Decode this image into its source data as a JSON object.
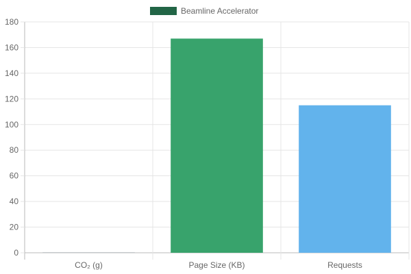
{
  "chart_data": {
    "type": "bar",
    "legend": {
      "label": "Beamline Accelerator",
      "color": "#226546",
      "position": "top"
    },
    "categories": [
      "CO₂ (g)",
      "Page Size (KB)",
      "Requests"
    ],
    "series": [
      {
        "name": "Beamline Accelerator",
        "values": [
          0.3,
          167,
          115
        ],
        "colors": [
          "#9aa0a6",
          "#38a36c",
          "#62b3ec"
        ]
      }
    ],
    "ylim": [
      0,
      180
    ],
    "yticks": [
      0,
      20,
      40,
      60,
      80,
      100,
      120,
      140,
      160,
      180
    ],
    "grid": true
  }
}
